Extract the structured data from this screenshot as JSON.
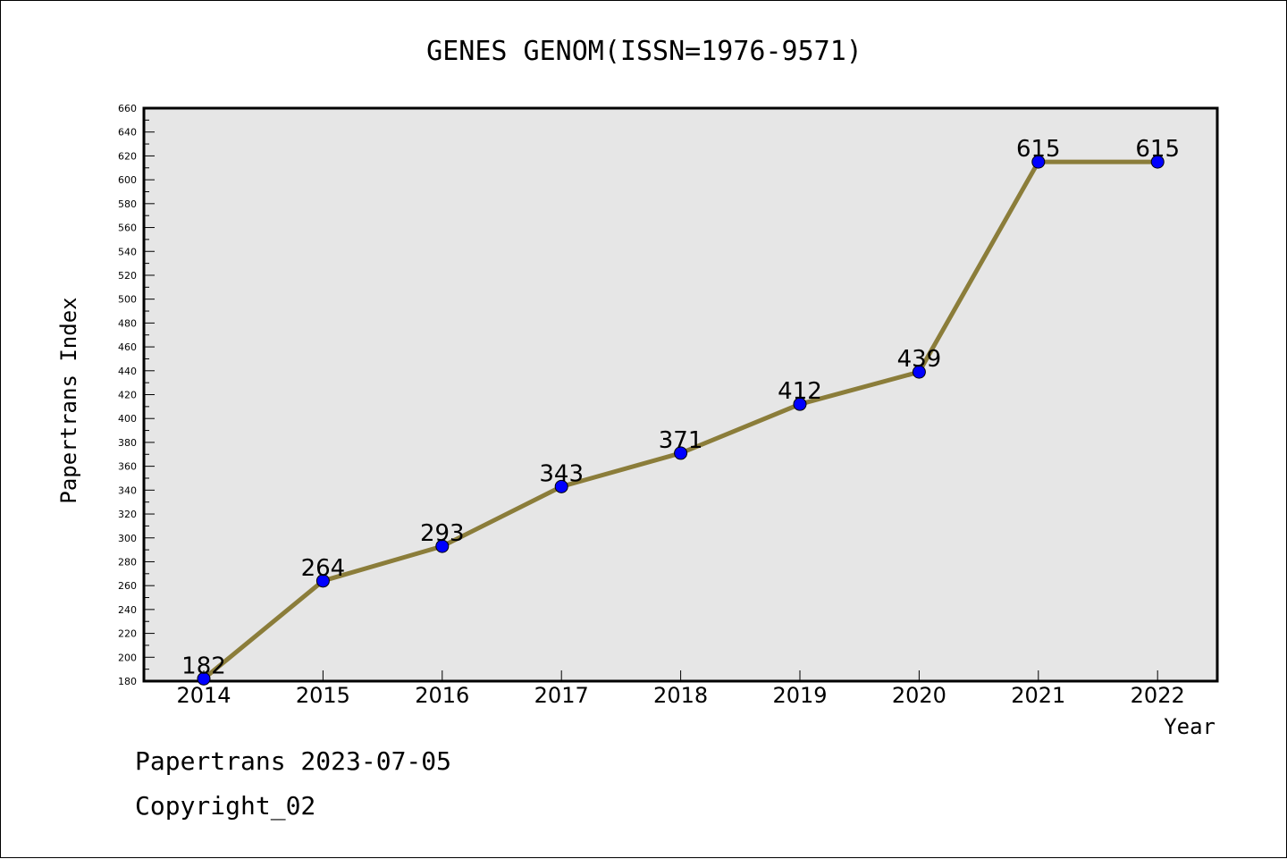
{
  "chart_data": {
    "type": "line",
    "title": "GENES GENOM(ISSN=1976-9571)",
    "xlabel": "Year",
    "ylabel": "Papertrans Index",
    "categories": [
      "2014",
      "2015",
      "2016",
      "2017",
      "2018",
      "2019",
      "2020",
      "2021",
      "2022"
    ],
    "values": [
      182,
      264,
      293,
      343,
      371,
      412,
      439,
      615,
      615
    ],
    "ylim": [
      180,
      660
    ],
    "yticks": [
      180,
      200,
      220,
      240,
      260,
      280,
      300,
      320,
      340,
      360,
      380,
      400,
      420,
      440,
      460,
      480,
      500,
      520,
      540,
      560,
      580,
      600,
      620,
      640,
      660
    ],
    "grid": false,
    "colors": {
      "line": "#8b7d3a",
      "marker": "#0000ff",
      "plot_bg": "#e6e6e6"
    }
  },
  "footer": {
    "line1": "Papertrans 2023-07-05",
    "line2": "Copyright_02"
  }
}
